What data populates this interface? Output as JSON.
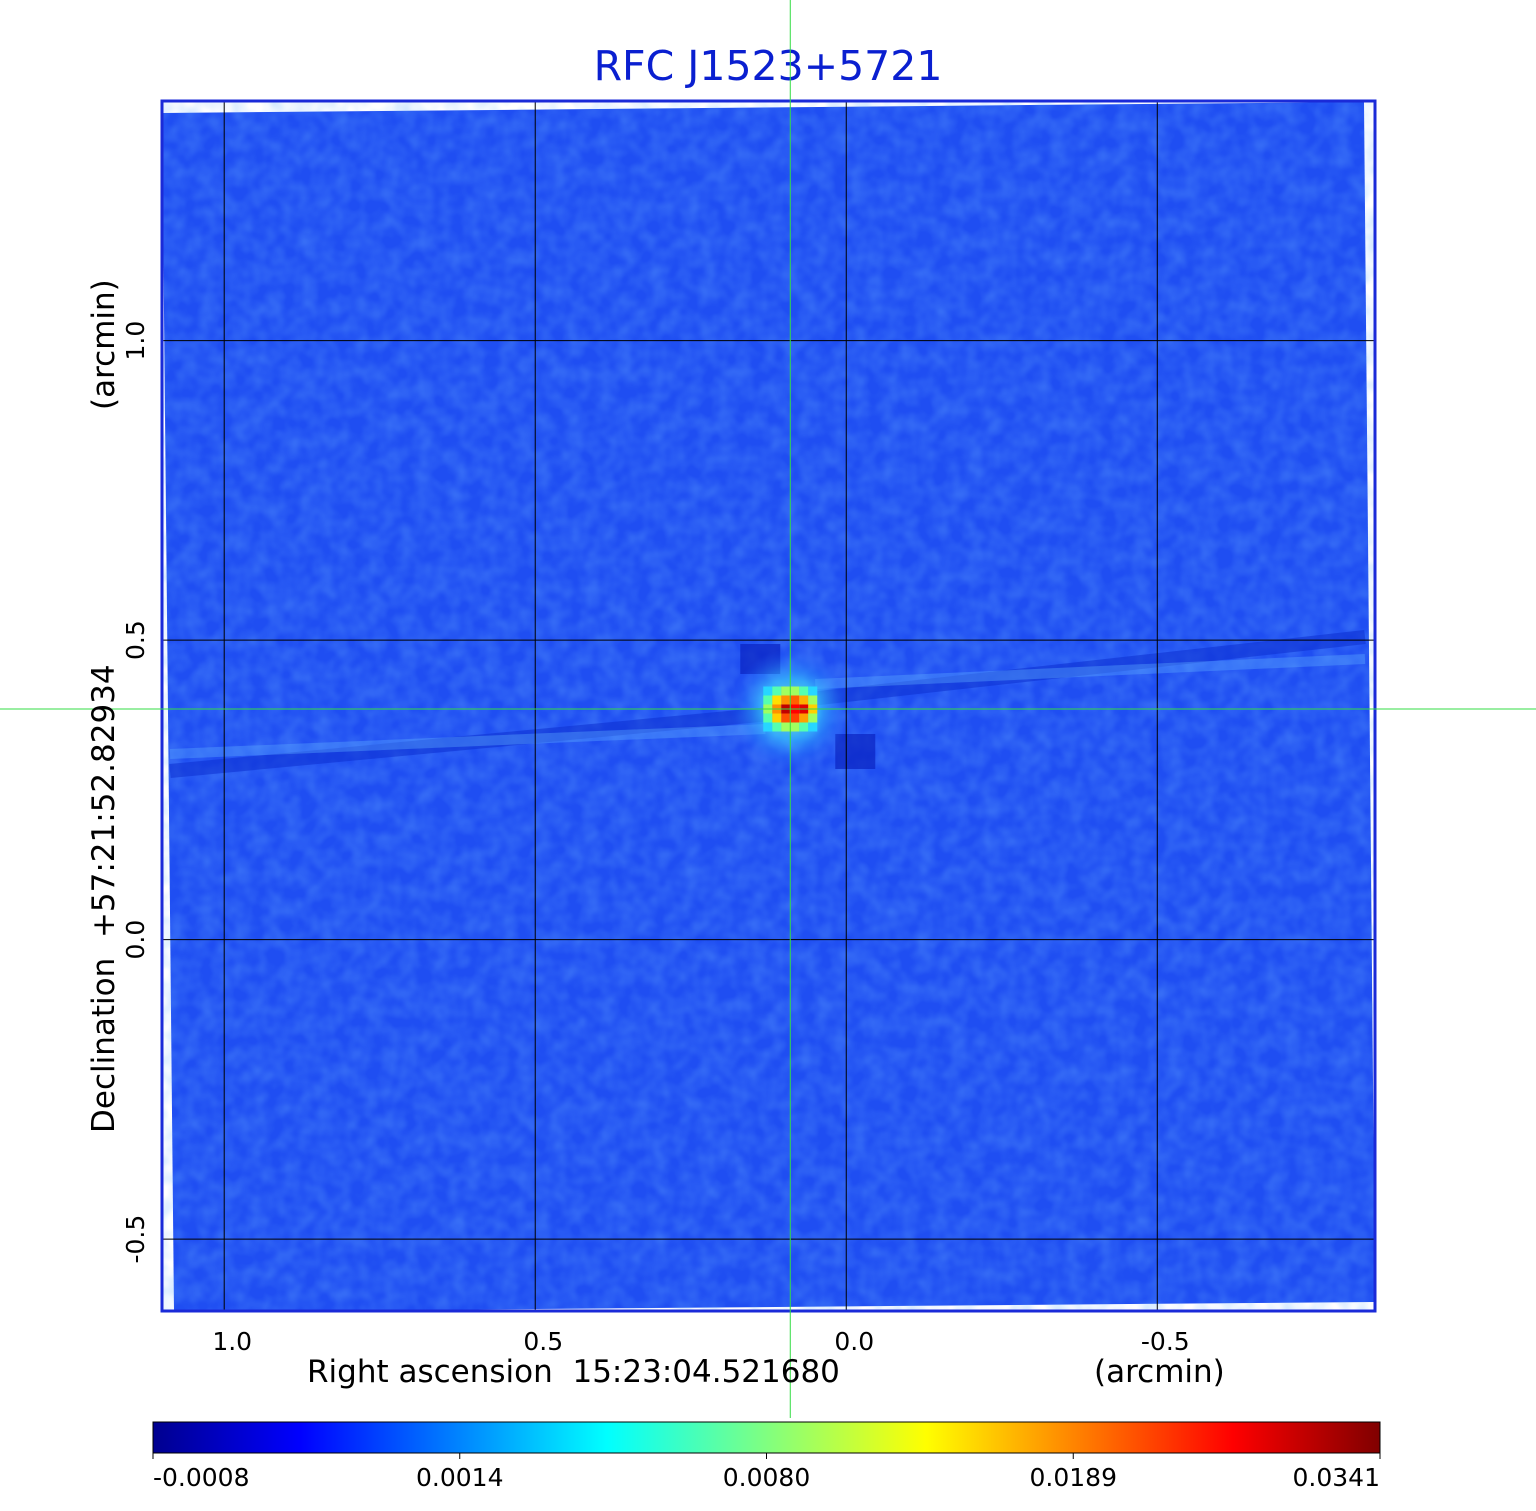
{
  "chart_data": {
    "type": "heatmap",
    "title": "RFC J1523+5721",
    "xlabel": "Right ascension  15:23:04.521680",
    "x_unit": "(arcmin)",
    "ylabel": "Declination  +57:21:52.82934",
    "y_unit": "(arcmin)",
    "x_range": [
      1.1,
      -0.85
    ],
    "y_range": [
      -0.62,
      1.4
    ],
    "x_ticks": [
      "1.0",
      "0.5",
      "0.0",
      "-0.5"
    ],
    "x_tick_values": [
      1.0,
      0.5,
      0.0,
      -0.5
    ],
    "y_ticks": [
      "1.0",
      "0.5",
      "0.0",
      "-0.5"
    ],
    "y_tick_values": [
      1.0,
      0.5,
      0.0,
      -0.5
    ],
    "grid": true,
    "source_position": {
      "x": 0.09,
      "y": 0.385
    },
    "peak_value": 0.0341,
    "colorbar": {
      "ticks": [
        "-0.0008",
        "0.0014",
        "0.0080",
        "0.0189",
        "0.0341"
      ],
      "colormap": "jet"
    },
    "colors": {
      "title": "#0a1fd0",
      "frame": "#1a2ad8",
      "crosshair": "#33dd44",
      "grid": "#000000"
    }
  }
}
